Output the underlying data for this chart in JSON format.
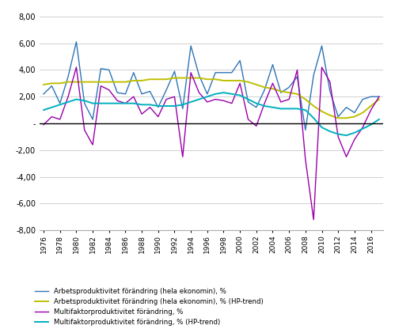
{
  "years": [
    1976,
    1977,
    1978,
    1979,
    1980,
    1981,
    1982,
    1983,
    1984,
    1985,
    1986,
    1987,
    1988,
    1989,
    1990,
    1991,
    1992,
    1993,
    1994,
    1995,
    1996,
    1997,
    1998,
    1999,
    2000,
    2001,
    2002,
    2003,
    2004,
    2005,
    2006,
    2007,
    2008,
    2009,
    2010,
    2011,
    2012,
    2013,
    2014,
    2015,
    2016,
    2017
  ],
  "labor_prod": [
    2.2,
    2.8,
    1.5,
    3.5,
    6.1,
    1.5,
    0.3,
    4.1,
    4.0,
    2.3,
    2.2,
    3.8,
    2.2,
    2.4,
    1.2,
    2.5,
    3.9,
    1.1,
    5.8,
    3.6,
    2.2,
    3.8,
    3.8,
    3.8,
    4.7,
    1.6,
    1.2,
    2.5,
    4.4,
    2.3,
    2.7,
    3.5,
    -0.5,
    3.6,
    5.8,
    2.4,
    0.5,
    1.2,
    0.8,
    1.8,
    2.0,
    2.0
  ],
  "labor_prod_hp": [
    2.9,
    3.0,
    3.0,
    3.1,
    3.1,
    3.1,
    3.1,
    3.1,
    3.1,
    3.1,
    3.1,
    3.2,
    3.2,
    3.3,
    3.3,
    3.3,
    3.4,
    3.4,
    3.4,
    3.4,
    3.3,
    3.3,
    3.2,
    3.2,
    3.2,
    3.1,
    2.9,
    2.7,
    2.6,
    2.4,
    2.3,
    2.2,
    1.8,
    1.3,
    0.9,
    0.6,
    0.4,
    0.4,
    0.5,
    0.8,
    1.3,
    1.8
  ],
  "multi_prod": [
    -0.1,
    0.5,
    0.3,
    2.0,
    4.2,
    -0.5,
    -1.6,
    2.8,
    2.5,
    1.7,
    1.5,
    2.0,
    0.7,
    1.2,
    0.5,
    1.8,
    2.0,
    -2.5,
    3.8,
    2.3,
    1.6,
    1.8,
    1.7,
    1.5,
    3.0,
    0.3,
    -0.2,
    1.5,
    3.0,
    1.6,
    1.8,
    4.0,
    -2.7,
    -7.2,
    4.2,
    3.1,
    -1.0,
    -2.5,
    -1.2,
    -0.3,
    1.0,
    2.0
  ],
  "multi_prod_hp": [
    1.0,
    1.2,
    1.4,
    1.6,
    1.8,
    1.7,
    1.5,
    1.5,
    1.5,
    1.5,
    1.5,
    1.5,
    1.4,
    1.4,
    1.3,
    1.3,
    1.3,
    1.4,
    1.6,
    1.8,
    2.0,
    2.2,
    2.3,
    2.2,
    2.1,
    1.8,
    1.5,
    1.3,
    1.2,
    1.1,
    1.1,
    1.1,
    1.0,
    0.4,
    -0.3,
    -0.6,
    -0.8,
    -0.9,
    -0.7,
    -0.4,
    -0.1,
    0.3
  ],
  "color_labor": "#2E75B6",
  "color_labor_hp": "#BFBF00",
  "color_multi": "#9900AA",
  "color_multi_hp": "#00B0C0",
  "ylim": [
    -8.0,
    8.0
  ],
  "yticks": [
    -8.0,
    -6.0,
    -4.0,
    -2.0,
    0.0,
    2.0,
    4.0,
    6.0,
    8.0
  ],
  "legend_labels": [
    "Arbetsproduktivitet förändring (hela ekonomin), %",
    "Arbetsproduktivitet förändring (hela ekonomin), % (HP-trend)",
    "Multifaktorproduktivitet förändring, %",
    "Multifaktorproduktivitet förändring, % (HP-trend)"
  ]
}
